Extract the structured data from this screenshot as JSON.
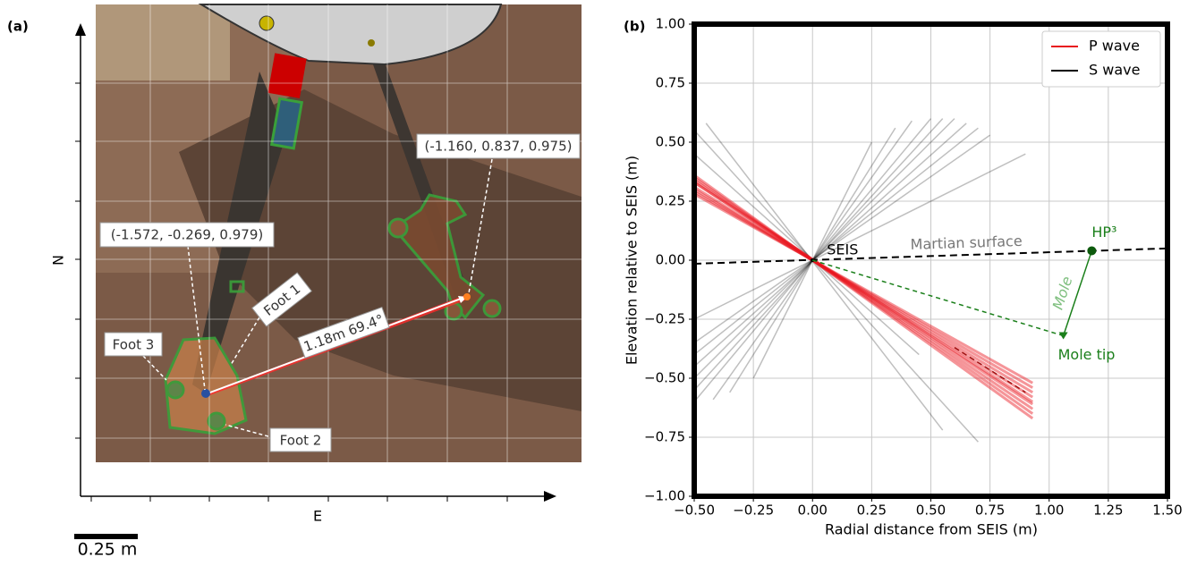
{
  "panel_a": {
    "label": "(a)",
    "north": "N",
    "east": "E",
    "scale": "0.25 m",
    "coord_hp3": "(-1.160, 0.837, 0.975)",
    "coord_seis": "(-1.572, -0.269, 0.979)",
    "foot1": "Foot 1",
    "foot2": "Foot 2",
    "foot3": "Foot 3",
    "distance": "1.18m 69.4°"
  },
  "chart_data": {
    "type": "line",
    "panel_label": "(b)",
    "x_label": "Radial distance from SEIS (m)",
    "y_label": "Elevation relative to SEIS (m)",
    "xlim": [
      -0.5,
      1.5
    ],
    "ylim": [
      -1.0,
      1.0
    ],
    "xticks": [
      {
        "value": -0.5,
        "label": "−0.50"
      },
      {
        "value": -0.25,
        "label": "−0.25"
      },
      {
        "value": 0,
        "label": "0.00"
      },
      {
        "value": 0.25,
        "label": "0.25"
      },
      {
        "value": 0.5,
        "label": "0.50"
      },
      {
        "value": 0.75,
        "label": "0.75"
      },
      {
        "value": 1,
        "label": "1.00"
      },
      {
        "value": 1.25,
        "label": "1.25"
      },
      {
        "value": 1.5,
        "label": "1.50"
      }
    ],
    "yticks": [
      {
        "value": -1,
        "label": "−1.00"
      },
      {
        "value": -0.75,
        "label": "−0.75"
      },
      {
        "value": -0.5,
        "label": "−0.50"
      },
      {
        "value": -0.25,
        "label": "−0.25"
      },
      {
        "value": 0,
        "label": "0.00"
      },
      {
        "value": 0.25,
        "label": "0.25"
      },
      {
        "value": 0.5,
        "label": "0.50"
      },
      {
        "value": 0.75,
        "label": "0.75"
      },
      {
        "value": 1,
        "label": "1.00"
      }
    ],
    "grid": true,
    "legend": "upper right",
    "series": [
      {
        "name": "P wave",
        "color": "#e8141c",
        "rays": [
          {
            "x": [
              -0.5,
              0.93
            ],
            "values": [
              0.28,
              -0.52
            ]
          },
          {
            "x": [
              -0.5,
              0.93
            ],
            "values": [
              0.29,
              -0.54
            ]
          },
          {
            "x": [
              -0.5,
              0.93
            ],
            "values": [
              0.3,
              -0.56
            ]
          },
          {
            "x": [
              -0.5,
              0.93
            ],
            "values": [
              0.31,
              -0.58
            ]
          },
          {
            "x": [
              -0.5,
              0.93
            ],
            "values": [
              0.33,
              -0.6
            ]
          },
          {
            "x": [
              -0.5,
              0.93
            ],
            "values": [
              0.33,
              -0.61
            ]
          },
          {
            "x": [
              -0.5,
              0.93
            ],
            "values": [
              0.34,
              -0.63
            ]
          },
          {
            "x": [
              -0.5,
              0.93
            ],
            "values": [
              0.35,
              -0.65
            ]
          },
          {
            "x": [
              -0.5,
              0.93
            ],
            "values": [
              0.36,
              -0.67
            ]
          }
        ]
      },
      {
        "name": "S wave",
        "color": "#000000",
        "rays": [
          {
            "x": [
              -0.5,
              0.5
            ],
            "values": [
              -0.6,
              0.6
            ]
          },
          {
            "x": [
              -0.5,
              0.6
            ],
            "values": [
              -0.5,
              0.6
            ]
          },
          {
            "x": [
              -0.5,
              0.65
            ],
            "values": [
              -0.45,
              0.58
            ]
          },
          {
            "x": [
              -0.42,
              0.42
            ],
            "values": [
              -0.59,
              0.59
            ]
          },
          {
            "x": [
              -0.35,
              0.35
            ],
            "values": [
              -0.56,
              0.56
            ]
          },
          {
            "x": [
              -0.5,
              0.7
            ],
            "values": [
              -0.4,
              0.56
            ]
          },
          {
            "x": [
              -0.5,
              0.75
            ],
            "values": [
              -0.35,
              0.53
            ]
          },
          {
            "x": [
              -0.5,
              0.55
            ],
            "values": [
              -0.55,
              0.6
            ]
          },
          {
            "x": [
              -0.5,
              0.7
            ],
            "values": [
              0.55,
              -0.77
            ]
          },
          {
            "x": [
              -0.5,
              0.45
            ],
            "values": [
              0.45,
              -0.4
            ]
          },
          {
            "x": [
              -0.45,
              0.55
            ],
            "values": [
              0.58,
              -0.72
            ]
          },
          {
            "x": [
              -0.25,
              0.25
            ],
            "values": [
              -0.5,
              0.5
            ]
          },
          {
            "x": [
              -0.5,
              0.9
            ],
            "values": [
              -0.25,
              0.45
            ]
          }
        ]
      }
    ],
    "p_fit": {
      "x": [
        0.6,
        0.9
      ],
      "values": [
        -0.37,
        -0.56
      ]
    },
    "surface": {
      "name": "Martian surface",
      "x": [
        -0.5,
        1.5
      ],
      "values": [
        -0.015,
        0.05
      ]
    },
    "seis": {
      "name": "SEIS",
      "x": 0,
      "y": 0
    },
    "points": [
      {
        "name": "HP³",
        "x": 1.18,
        "y": 0.04
      },
      {
        "name": "Mole tip",
        "x": 1.06,
        "y": -0.32
      }
    ],
    "mole_label": "Mole",
    "annotation_color": "#1a7f1a"
  }
}
